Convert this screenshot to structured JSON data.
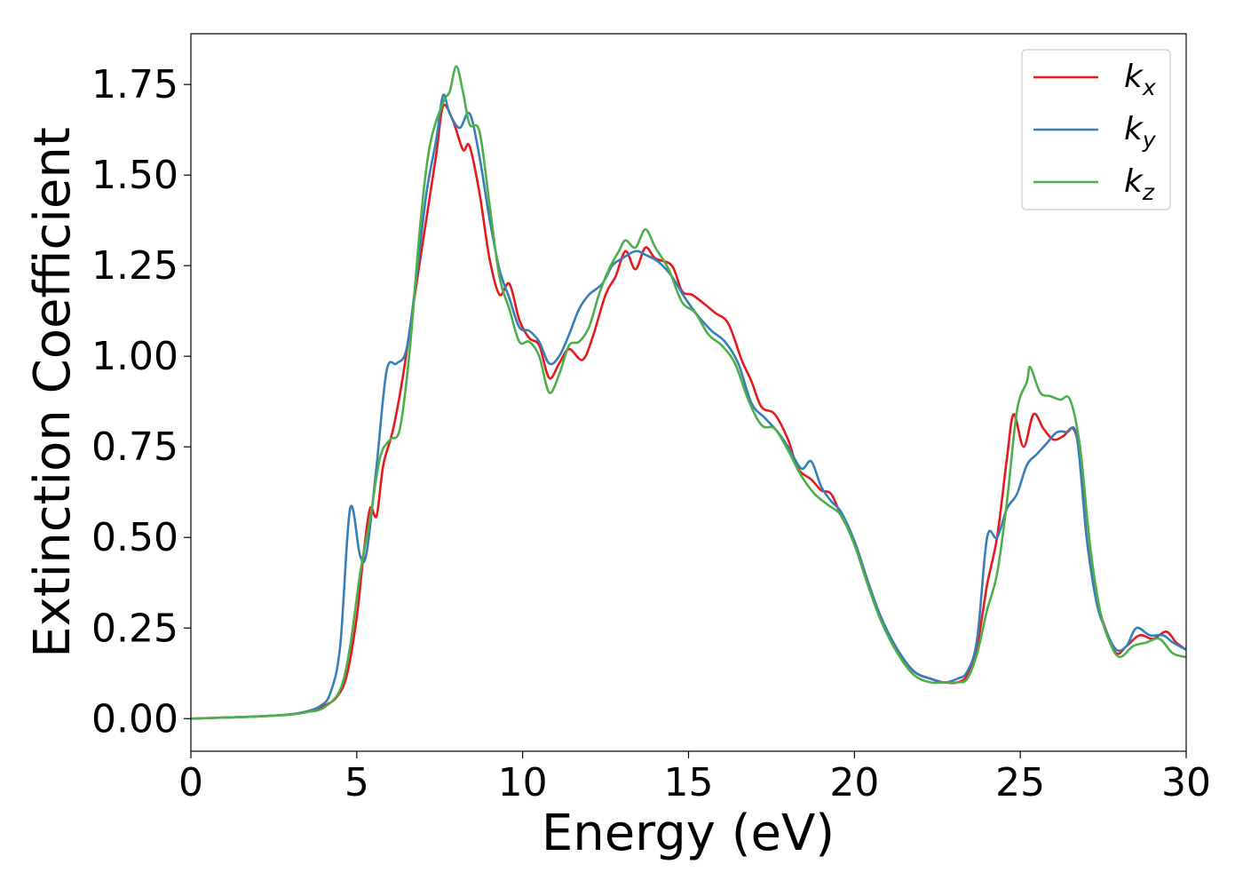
{
  "chart_data": {
    "type": "line",
    "title": "",
    "xlabel": "Energy (eV)",
    "ylabel": "Extinction Coefficient",
    "xlim": [
      0,
      30
    ],
    "ylim": [
      -0.09,
      1.89
    ],
    "xticks": [
      0,
      5,
      10,
      15,
      20,
      25,
      30
    ],
    "xtick_labels": [
      "0",
      "5",
      "10",
      "15",
      "20",
      "25",
      "30"
    ],
    "yticks": [
      0.0,
      0.25,
      0.5,
      0.75,
      1.0,
      1.25,
      1.5,
      1.75
    ],
    "ytick_labels": [
      "0.00",
      "0.25",
      "0.50",
      "0.75",
      "1.00",
      "1.25",
      "1.50",
      "1.75"
    ],
    "grid": false,
    "legend_position": "top-right",
    "series": [
      {
        "name": "k_x",
        "legend_base": "k",
        "legend_sub": "x",
        "color": "#e41a1c",
        "points": [
          [
            0,
            0.0
          ],
          [
            1,
            0.003
          ],
          [
            2,
            0.006
          ],
          [
            3,
            0.012
          ],
          [
            3.5,
            0.02
          ],
          [
            4,
            0.035
          ],
          [
            4.4,
            0.06
          ],
          [
            4.7,
            0.12
          ],
          [
            5,
            0.28
          ],
          [
            5.2,
            0.45
          ],
          [
            5.4,
            0.58
          ],
          [
            5.6,
            0.56
          ],
          [
            5.8,
            0.7
          ],
          [
            6.1,
            0.8
          ],
          [
            6.4,
            0.95
          ],
          [
            6.8,
            1.2
          ],
          [
            7.1,
            1.38
          ],
          [
            7.4,
            1.56
          ],
          [
            7.6,
            1.69
          ],
          [
            7.9,
            1.65
          ],
          [
            8.2,
            1.57
          ],
          [
            8.4,
            1.58
          ],
          [
            8.7,
            1.45
          ],
          [
            9.0,
            1.27
          ],
          [
            9.3,
            1.17
          ],
          [
            9.6,
            1.2
          ],
          [
            9.9,
            1.1
          ],
          [
            10.2,
            1.05
          ],
          [
            10.5,
            1.03
          ],
          [
            10.8,
            0.94
          ],
          [
            11.1,
            0.98
          ],
          [
            11.4,
            1.02
          ],
          [
            11.8,
            0.99
          ],
          [
            12.1,
            1.05
          ],
          [
            12.5,
            1.17
          ],
          [
            12.8,
            1.22
          ],
          [
            13.1,
            1.29
          ],
          [
            13.4,
            1.24
          ],
          [
            13.7,
            1.3
          ],
          [
            14.0,
            1.27
          ],
          [
            14.5,
            1.25
          ],
          [
            14.8,
            1.18
          ],
          [
            15.1,
            1.17
          ],
          [
            15.4,
            1.15
          ],
          [
            15.8,
            1.12
          ],
          [
            16.2,
            1.09
          ],
          [
            16.6,
            0.99
          ],
          [
            16.9,
            0.93
          ],
          [
            17.2,
            0.86
          ],
          [
            17.6,
            0.84
          ],
          [
            18.0,
            0.77
          ],
          [
            18.3,
            0.69
          ],
          [
            18.7,
            0.66
          ],
          [
            19.0,
            0.63
          ],
          [
            19.3,
            0.62
          ],
          [
            19.6,
            0.56
          ],
          [
            20.0,
            0.49
          ],
          [
            20.4,
            0.38
          ],
          [
            20.8,
            0.28
          ],
          [
            21.3,
            0.19
          ],
          [
            21.8,
            0.13
          ],
          [
            22.3,
            0.11
          ],
          [
            22.7,
            0.1
          ],
          [
            23.1,
            0.1
          ],
          [
            23.4,
            0.12
          ],
          [
            23.7,
            0.2
          ],
          [
            24.0,
            0.37
          ],
          [
            24.3,
            0.5
          ],
          [
            24.6,
            0.72
          ],
          [
            24.8,
            0.84
          ],
          [
            25.1,
            0.75
          ],
          [
            25.4,
            0.84
          ],
          [
            25.7,
            0.8
          ],
          [
            26.0,
            0.77
          ],
          [
            26.3,
            0.78
          ],
          [
            26.6,
            0.8
          ],
          [
            26.8,
            0.72
          ],
          [
            27.0,
            0.5
          ],
          [
            27.3,
            0.33
          ],
          [
            27.6,
            0.24
          ],
          [
            27.9,
            0.18
          ],
          [
            28.2,
            0.2
          ],
          [
            28.6,
            0.23
          ],
          [
            29.0,
            0.22
          ],
          [
            29.4,
            0.24
          ],
          [
            29.7,
            0.21
          ],
          [
            30,
            0.19
          ]
        ]
      },
      {
        "name": "k_y",
        "legend_base": "k",
        "legend_sub": "y",
        "color": "#377eb8",
        "points": [
          [
            0,
            0.0
          ],
          [
            1,
            0.003
          ],
          [
            2,
            0.006
          ],
          [
            3,
            0.012
          ],
          [
            3.5,
            0.02
          ],
          [
            3.9,
            0.035
          ],
          [
            4.2,
            0.07
          ],
          [
            4.5,
            0.2
          ],
          [
            4.8,
            0.58
          ],
          [
            5.1,
            0.45
          ],
          [
            5.3,
            0.46
          ],
          [
            5.6,
            0.7
          ],
          [
            5.9,
            0.96
          ],
          [
            6.2,
            0.98
          ],
          [
            6.5,
            1.02
          ],
          [
            6.8,
            1.22
          ],
          [
            7.1,
            1.45
          ],
          [
            7.4,
            1.6
          ],
          [
            7.6,
            1.72
          ],
          [
            7.8,
            1.67
          ],
          [
            8.1,
            1.63
          ],
          [
            8.4,
            1.67
          ],
          [
            8.7,
            1.55
          ],
          [
            9.0,
            1.38
          ],
          [
            9.3,
            1.24
          ],
          [
            9.6,
            1.16
          ],
          [
            9.9,
            1.08
          ],
          [
            10.2,
            1.07
          ],
          [
            10.5,
            1.04
          ],
          [
            10.8,
            0.98
          ],
          [
            11.1,
            1.0
          ],
          [
            11.4,
            1.06
          ],
          [
            11.7,
            1.13
          ],
          [
            12.0,
            1.17
          ],
          [
            12.4,
            1.2
          ],
          [
            12.7,
            1.25
          ],
          [
            13.0,
            1.27
          ],
          [
            13.4,
            1.29
          ],
          [
            13.7,
            1.28
          ],
          [
            14.1,
            1.26
          ],
          [
            14.5,
            1.22
          ],
          [
            14.9,
            1.16
          ],
          [
            15.3,
            1.11
          ],
          [
            15.7,
            1.07
          ],
          [
            16.1,
            1.04
          ],
          [
            16.5,
            0.98
          ],
          [
            16.9,
            0.87
          ],
          [
            17.3,
            0.83
          ],
          [
            17.7,
            0.79
          ],
          [
            18.0,
            0.75
          ],
          [
            18.4,
            0.69
          ],
          [
            18.7,
            0.71
          ],
          [
            19.0,
            0.64
          ],
          [
            19.3,
            0.6
          ],
          [
            19.6,
            0.57
          ],
          [
            20.0,
            0.49
          ],
          [
            20.4,
            0.38
          ],
          [
            20.8,
            0.28
          ],
          [
            21.3,
            0.19
          ],
          [
            21.8,
            0.13
          ],
          [
            22.3,
            0.11
          ],
          [
            22.7,
            0.1
          ],
          [
            23.1,
            0.11
          ],
          [
            23.4,
            0.13
          ],
          [
            23.7,
            0.22
          ],
          [
            24.0,
            0.5
          ],
          [
            24.3,
            0.5
          ],
          [
            24.6,
            0.58
          ],
          [
            24.9,
            0.62
          ],
          [
            25.2,
            0.7
          ],
          [
            25.5,
            0.73
          ],
          [
            25.8,
            0.76
          ],
          [
            26.1,
            0.79
          ],
          [
            26.4,
            0.79
          ],
          [
            26.7,
            0.78
          ],
          [
            27.0,
            0.5
          ],
          [
            27.3,
            0.32
          ],
          [
            27.6,
            0.24
          ],
          [
            27.9,
            0.19
          ],
          [
            28.2,
            0.2
          ],
          [
            28.5,
            0.25
          ],
          [
            28.9,
            0.23
          ],
          [
            29.3,
            0.23
          ],
          [
            29.6,
            0.21
          ],
          [
            30,
            0.19
          ]
        ]
      },
      {
        "name": "k_z",
        "legend_base": "k",
        "legend_sub": "z",
        "color": "#4daf4a",
        "points": [
          [
            0,
            0.0
          ],
          [
            1,
            0.003
          ],
          [
            2,
            0.006
          ],
          [
            3,
            0.011
          ],
          [
            3.5,
            0.018
          ],
          [
            4,
            0.03
          ],
          [
            4.5,
            0.08
          ],
          [
            4.8,
            0.2
          ],
          [
            5.1,
            0.4
          ],
          [
            5.4,
            0.55
          ],
          [
            5.7,
            0.72
          ],
          [
            6.0,
            0.77
          ],
          [
            6.3,
            0.8
          ],
          [
            6.6,
            1.02
          ],
          [
            6.9,
            1.35
          ],
          [
            7.2,
            1.58
          ],
          [
            7.6,
            1.7
          ],
          [
            7.8,
            1.73
          ],
          [
            8.0,
            1.8
          ],
          [
            8.2,
            1.73
          ],
          [
            8.4,
            1.64
          ],
          [
            8.7,
            1.62
          ],
          [
            9.0,
            1.42
          ],
          [
            9.3,
            1.22
          ],
          [
            9.6,
            1.13
          ],
          [
            9.9,
            1.04
          ],
          [
            10.2,
            1.04
          ],
          [
            10.5,
            1.0
          ],
          [
            10.8,
            0.9
          ],
          [
            11.1,
            0.95
          ],
          [
            11.4,
            1.03
          ],
          [
            11.7,
            1.04
          ],
          [
            12.0,
            1.08
          ],
          [
            12.3,
            1.17
          ],
          [
            12.6,
            1.24
          ],
          [
            12.9,
            1.29
          ],
          [
            13.1,
            1.32
          ],
          [
            13.4,
            1.3
          ],
          [
            13.7,
            1.35
          ],
          [
            14.0,
            1.3
          ],
          [
            14.4,
            1.24
          ],
          [
            14.8,
            1.15
          ],
          [
            15.2,
            1.12
          ],
          [
            15.6,
            1.06
          ],
          [
            16.0,
            1.03
          ],
          [
            16.4,
            0.98
          ],
          [
            16.8,
            0.88
          ],
          [
            17.2,
            0.81
          ],
          [
            17.6,
            0.8
          ],
          [
            18.0,
            0.74
          ],
          [
            18.4,
            0.67
          ],
          [
            18.8,
            0.62
          ],
          [
            19.2,
            0.59
          ],
          [
            19.6,
            0.56
          ],
          [
            20.0,
            0.48
          ],
          [
            20.4,
            0.37
          ],
          [
            20.8,
            0.27
          ],
          [
            21.3,
            0.18
          ],
          [
            21.8,
            0.12
          ],
          [
            22.3,
            0.1
          ],
          [
            22.7,
            0.1
          ],
          [
            23.1,
            0.1
          ],
          [
            23.4,
            0.11
          ],
          [
            23.7,
            0.18
          ],
          [
            24.0,
            0.3
          ],
          [
            24.3,
            0.4
          ],
          [
            24.6,
            0.6
          ],
          [
            24.9,
            0.85
          ],
          [
            25.2,
            0.93
          ],
          [
            25.3,
            0.97
          ],
          [
            25.6,
            0.9
          ],
          [
            25.9,
            0.89
          ],
          [
            26.2,
            0.88
          ],
          [
            26.5,
            0.88
          ],
          [
            26.8,
            0.75
          ],
          [
            27.1,
            0.48
          ],
          [
            27.4,
            0.3
          ],
          [
            27.7,
            0.21
          ],
          [
            28.0,
            0.17
          ],
          [
            28.4,
            0.2
          ],
          [
            28.8,
            0.21
          ],
          [
            29.2,
            0.22
          ],
          [
            29.6,
            0.18
          ],
          [
            30,
            0.17
          ]
        ]
      }
    ]
  }
}
